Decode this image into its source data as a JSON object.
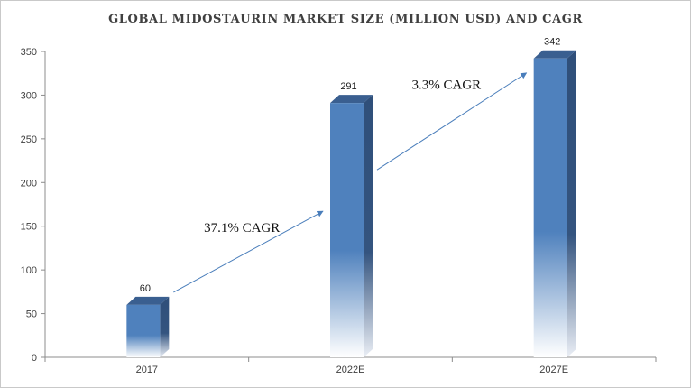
{
  "chart_data": {
    "type": "bar",
    "title": "GLOBAL MIDOSTAURIN MARKET  SIZE (MILLION USD) AND CAGR",
    "categories": [
      "2017",
      "2022E",
      "2027E"
    ],
    "values": [
      60,
      291,
      342
    ],
    "data_labels": [
      "60",
      "291",
      "342"
    ],
    "ylim": [
      0,
      350
    ],
    "yticks": [
      0,
      50,
      100,
      150,
      200,
      250,
      300,
      350
    ],
    "grid": false,
    "legend": "none",
    "bar_color": "#4f81bd",
    "annotations": [
      {
        "text": "37.1% CAGR",
        "from": "2017",
        "to": "2022E"
      },
      {
        "text": "3.3% CAGR",
        "from": "2022E",
        "to": "2027E"
      }
    ]
  }
}
